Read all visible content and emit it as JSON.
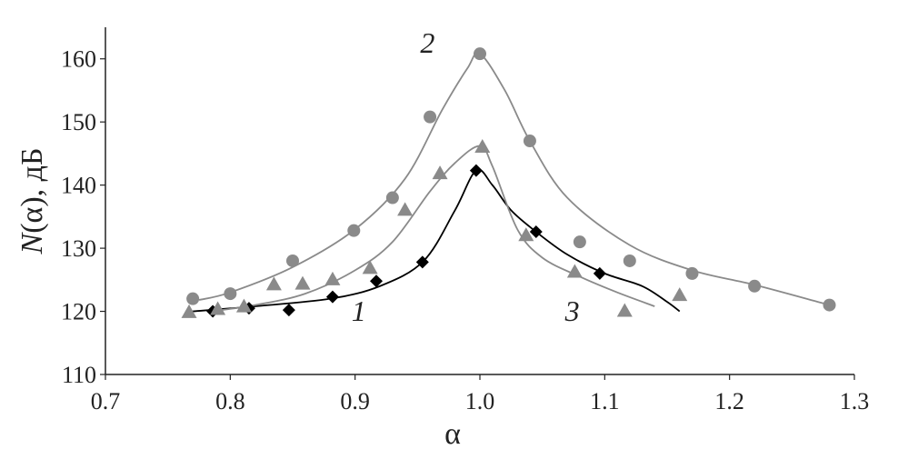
{
  "chart_data": {
    "type": "scatter",
    "title": "",
    "xlabel": "α",
    "ylabel_italic": "N",
    "ylabel_rest": "(α), дБ",
    "xlim": [
      0.7,
      1.3
    ],
    "ylim": [
      110,
      165
    ],
    "xticks": [
      0.7,
      0.8,
      0.9,
      1.0,
      1.1,
      1.2,
      1.3
    ],
    "xtick_labels": [
      "0.7",
      "0.8",
      "0.9",
      "1.0",
      "1.1",
      "1.2",
      "1.3"
    ],
    "yticks": [
      110,
      120,
      130,
      140,
      150,
      160
    ],
    "ytick_labels": [
      "110",
      "120",
      "130",
      "140",
      "150",
      "160"
    ],
    "grid": false,
    "legend": "none",
    "series": [
      {
        "name": "1",
        "marker": "diamond",
        "color": "#000000",
        "points": [
          [
            0.786,
            120.0
          ],
          [
            0.815,
            120.5
          ],
          [
            0.847,
            120.2
          ],
          [
            0.882,
            122.3
          ],
          [
            0.917,
            124.8
          ],
          [
            0.954,
            127.8
          ],
          [
            0.997,
            142.3
          ],
          [
            1.045,
            132.6
          ],
          [
            1.096,
            126.0
          ]
        ],
        "fit": [
          [
            0.77,
            120.0
          ],
          [
            0.82,
            120.8
          ],
          [
            0.88,
            122.0
          ],
          [
            0.92,
            124.0
          ],
          [
            0.955,
            128.0
          ],
          [
            0.98,
            136.0
          ],
          [
            0.997,
            142.3
          ],
          [
            1.01,
            140.0
          ],
          [
            1.025,
            136.0
          ],
          [
            1.045,
            132.6
          ],
          [
            1.07,
            129.0
          ],
          [
            1.1,
            126.0
          ],
          [
            1.13,
            124.0
          ],
          [
            1.15,
            121.5
          ],
          [
            1.16,
            120.0
          ]
        ]
      },
      {
        "name": "2",
        "marker": "circle",
        "color": "#8a8a8a",
        "points": [
          [
            0.77,
            122.0
          ],
          [
            0.8,
            122.8
          ],
          [
            0.85,
            128.0
          ],
          [
            0.899,
            132.8
          ],
          [
            0.93,
            138.0
          ],
          [
            0.96,
            150.8
          ],
          [
            1.0,
            160.8
          ],
          [
            1.04,
            147.0
          ],
          [
            1.08,
            131.0
          ],
          [
            1.12,
            128.0
          ],
          [
            1.17,
            126.0
          ],
          [
            1.22,
            124.0
          ],
          [
            1.28,
            121.0
          ]
        ],
        "fit": [
          [
            0.775,
            121.8
          ],
          [
            0.8,
            123.0
          ],
          [
            0.85,
            127.0
          ],
          [
            0.9,
            133.0
          ],
          [
            0.94,
            141.0
          ],
          [
            0.97,
            152.0
          ],
          [
            0.99,
            158.5
          ],
          [
            1.0,
            160.8
          ],
          [
            1.02,
            155.0
          ],
          [
            1.04,
            147.0
          ],
          [
            1.07,
            138.0
          ],
          [
            1.12,
            130.5
          ],
          [
            1.17,
            126.5
          ],
          [
            1.22,
            124.2
          ],
          [
            1.28,
            121.0
          ]
        ]
      },
      {
        "name": "3",
        "marker": "triangle",
        "color": "#8a8a8a",
        "points": [
          [
            0.767,
            119.8
          ],
          [
            0.79,
            120.3
          ],
          [
            0.811,
            120.7
          ],
          [
            0.835,
            124.2
          ],
          [
            0.858,
            124.3
          ],
          [
            0.882,
            125.0
          ],
          [
            0.912,
            126.8
          ],
          [
            0.94,
            136.0
          ],
          [
            0.968,
            141.8
          ],
          [
            1.002,
            146.0
          ],
          [
            1.037,
            132.0
          ],
          [
            1.076,
            126.2
          ],
          [
            1.116,
            120.0
          ],
          [
            1.16,
            122.5
          ]
        ],
        "fit": [
          [
            0.785,
            120.0
          ],
          [
            0.82,
            121.0
          ],
          [
            0.86,
            122.8
          ],
          [
            0.9,
            126.5
          ],
          [
            0.93,
            131.0
          ],
          [
            0.96,
            139.0
          ],
          [
            0.98,
            143.5
          ],
          [
            1.0,
            146.2
          ],
          [
            1.01,
            143.0
          ],
          [
            1.03,
            133.0
          ],
          [
            1.05,
            128.5
          ],
          [
            1.08,
            125.5
          ],
          [
            1.11,
            123.0
          ],
          [
            1.14,
            120.8
          ]
        ]
      }
    ],
    "annotations": [
      {
        "text": "1",
        "x": 0.903,
        "y": 118.5
      },
      {
        "text": "2",
        "x": 0.958,
        "y": 161.0
      },
      {
        "text": "3",
        "x": 1.074,
        "y": 118.5
      }
    ]
  }
}
